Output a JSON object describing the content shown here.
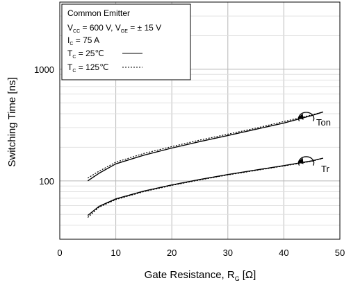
{
  "chart_data": {
    "type": "line",
    "xlabel": "Gate Resistance, R",
    "xlabel_sub": "G",
    "xlabel_unit": "[Ω]",
    "ylabel": "Switching Time [ns]",
    "x_scale": "linear",
    "y_scale": "log",
    "xlim": [
      0,
      50
    ],
    "ylim": [
      30,
      4000
    ],
    "x_ticks": [
      0,
      10,
      20,
      30,
      40,
      50
    ],
    "y_tick_labels": [
      {
        "value": 100,
        "label": "100"
      },
      {
        "value": 1000,
        "label": "1000"
      }
    ],
    "grid": true,
    "legend_position": "top-left",
    "legend": {
      "title": "Common Emitter",
      "line2": {
        "v1": "V",
        "s1": "CC",
        "t1": " = 600 V, V",
        "s2": "GE",
        "t2": " = ±  15 V"
      },
      "line3": {
        "v": "I",
        "s": "C",
        "t": " = 75 A"
      },
      "line4": {
        "v": "T",
        "s": "C",
        "t": " =   25℃",
        "style": "solid"
      },
      "line5": {
        "v": "T",
        "s": "C",
        "t": " = 125℃",
        "style": "dashed"
      }
    },
    "annotations": [
      "Ton",
      "Tr"
    ],
    "series": [
      {
        "name": "Ton",
        "condition": "25℃",
        "style": "solid",
        "x": [
          5,
          7,
          10,
          15,
          20,
          25,
          30,
          35,
          40,
          45,
          47
        ],
        "y": [
          100,
          117,
          142,
          170,
          197,
          225,
          255,
          290,
          330,
          385,
          415
        ]
      },
      {
        "name": "Ton",
        "condition": "125℃",
        "style": "dashed",
        "x": [
          5,
          7,
          10,
          15,
          20,
          25,
          30,
          35,
          40,
          45,
          47
        ],
        "y": [
          106,
          122,
          147,
          176,
          203,
          232,
          262,
          297,
          340,
          390,
          415
        ]
      },
      {
        "name": "Tr",
        "condition": "25℃",
        "style": "solid",
        "x": [
          5,
          7,
          10,
          15,
          20,
          25,
          30,
          35,
          40,
          45,
          47
        ],
        "y": [
          49,
          59,
          69,
          81,
          92,
          103,
          114,
          125,
          137,
          151,
          160
        ]
      },
      {
        "name": "Tr",
        "condition": "125℃",
        "style": "dashed",
        "x": [
          5,
          7,
          10,
          15,
          20,
          25,
          30,
          35,
          40,
          45,
          47
        ],
        "y": [
          47,
          58,
          68,
          80,
          91,
          102,
          113,
          124,
          136,
          150,
          159
        ]
      }
    ]
  }
}
